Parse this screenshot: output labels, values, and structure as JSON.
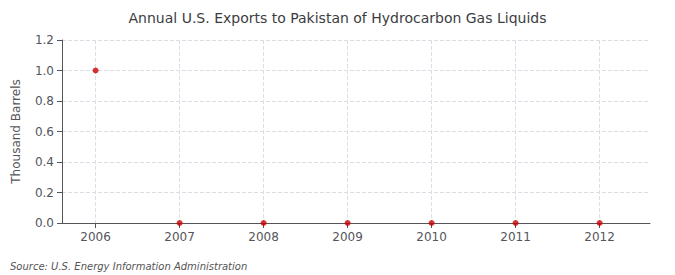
{
  "chart_data": {
    "type": "scatter",
    "title": "Annual U.S. Exports to Pakistan of Hydrocarbon Gas Liquids",
    "ylabel": "Thousand Barrels",
    "annotations": [
      "Source: U.S. Energy Information Administration"
    ],
    "x": [
      2006,
      2007,
      2008,
      2009,
      2010,
      2011,
      2012
    ],
    "values": [
      1.0,
      0.0,
      0.0,
      0.0,
      0.0,
      0.0,
      0.0
    ],
    "color": "#CC0000",
    "xlim": [
      2005.6,
      2012.6
    ],
    "xticks": [
      2006,
      2007,
      2008,
      2009,
      2010,
      2011,
      2012
    ],
    "ylim": [
      0.0,
      1.2
    ],
    "yticks": [
      {
        "value": 0.0,
        "label": "0.0"
      },
      0.2,
      0.4,
      0.6,
      0.8,
      {
        "value": 1.0,
        "label": "1.0"
      },
      1.2
    ],
    "grid": true
  }
}
